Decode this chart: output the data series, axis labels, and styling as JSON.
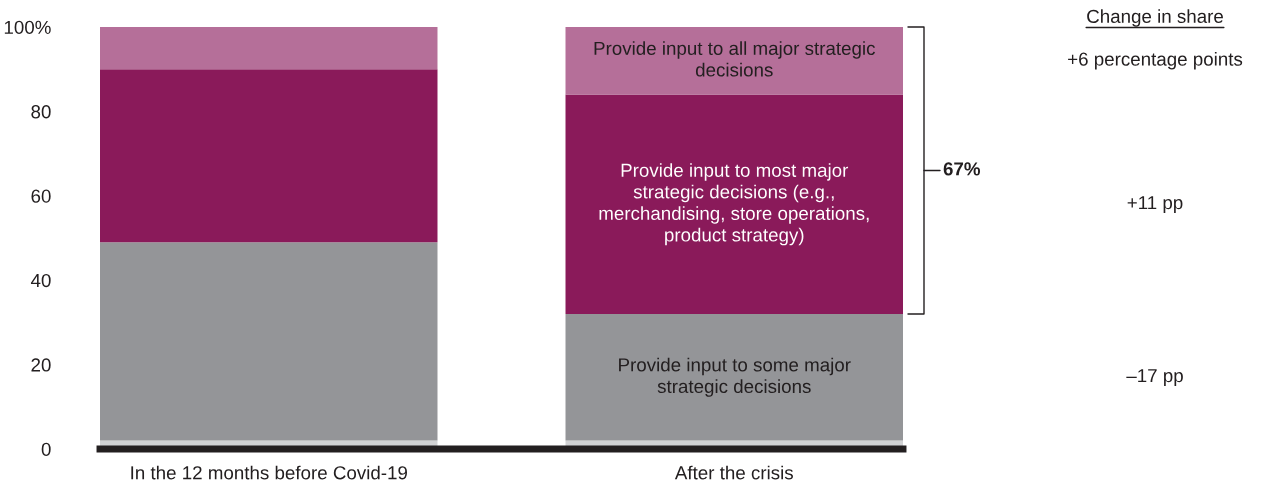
{
  "chart_data": {
    "type": "bar",
    "stacked": true,
    "categories": [
      "In the 12 months before Covid-19",
      "After the crisis"
    ],
    "series": [
      {
        "color": "#d1d2d4",
        "values": [
          2,
          2
        ]
      },
      {
        "name": "Provide input to some major strategic decisions",
        "color": "#949598",
        "values": [
          47,
          30
        ]
      },
      {
        "name": "Provide input to most major strategic decisions (e.g., merchandising, store operations, product strategy)",
        "color": "#8a1a5a",
        "values": [
          41,
          52
        ]
      },
      {
        "name": "Provide input to all major strategic decisions",
        "color": "#b56f99",
        "values": [
          10,
          16
        ]
      }
    ],
    "ylim": [
      0,
      100
    ],
    "yticks": [
      0,
      20,
      40,
      60,
      80,
      {
        "value": 100,
        "label": "100%"
      }
    ],
    "grid": false,
    "legend": false,
    "annotations": [
      "67%",
      "Change in share",
      "+6 percentage points",
      "+11 pp",
      "–17 pp"
    ]
  }
}
